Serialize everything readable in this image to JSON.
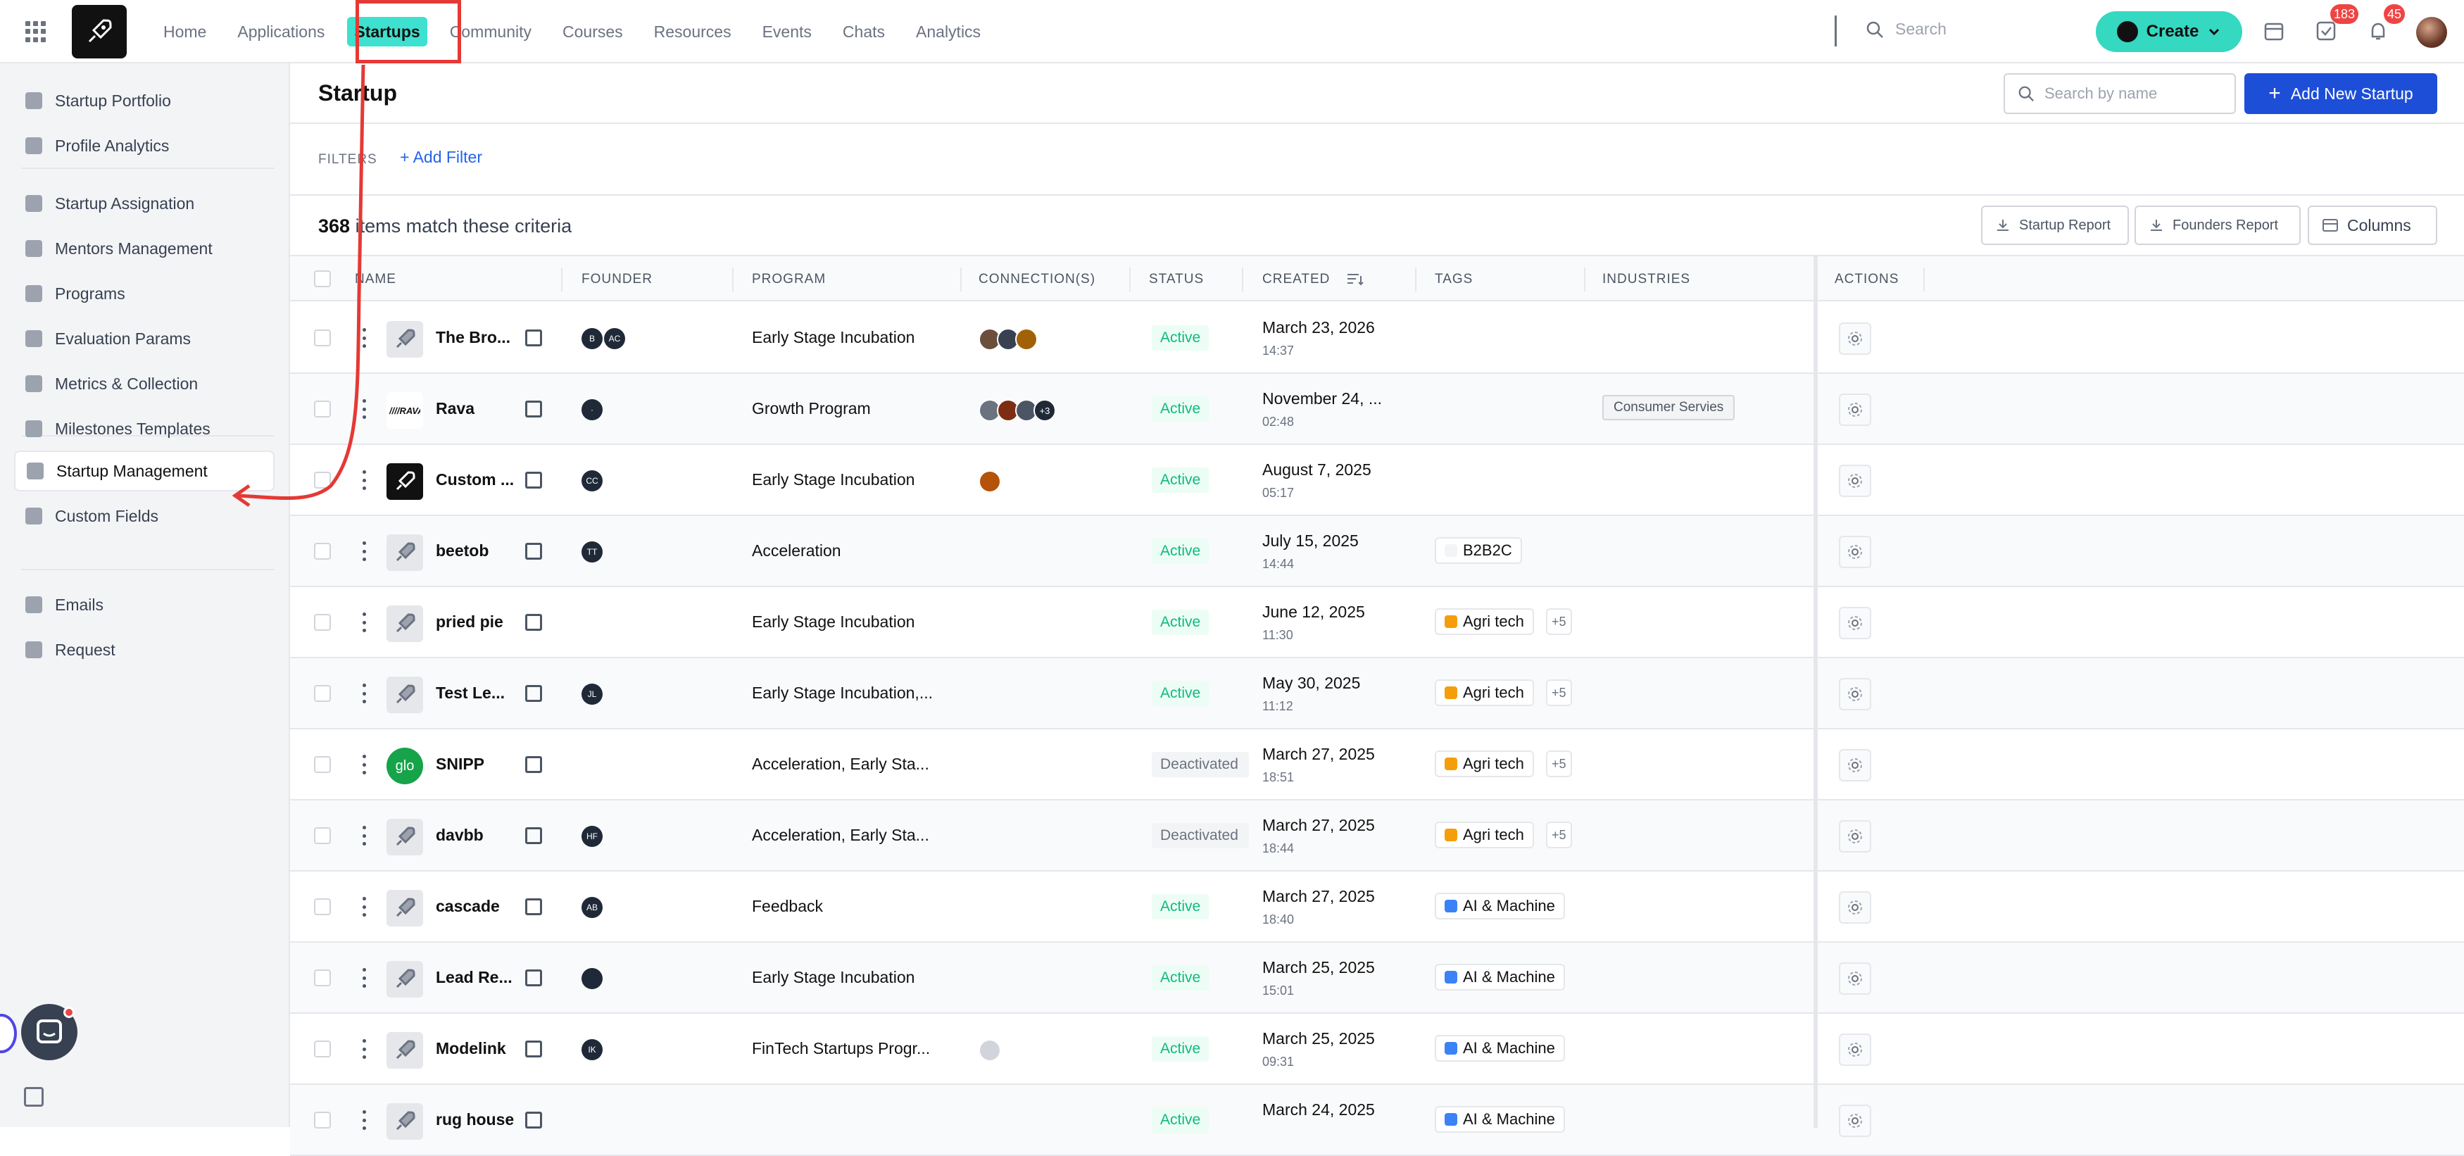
{
  "topbar": {
    "nav": [
      {
        "label": "Home",
        "active": false
      },
      {
        "label": "Applications",
        "active": false
      },
      {
        "label": "Startups",
        "active": true
      },
      {
        "label": "Community",
        "active": false
      },
      {
        "label": "Courses",
        "active": false
      },
      {
        "label": "Resources",
        "active": false
      },
      {
        "label": "Events",
        "active": false
      },
      {
        "label": "Chats",
        "active": false
      },
      {
        "label": "Analytics",
        "active": false
      }
    ],
    "search_placeholder": "Search",
    "create_label": "Create",
    "tasks_badge": "183",
    "notifications_badge": "45"
  },
  "sidebar": {
    "group1": [
      {
        "label": "Startup Portfolio",
        "icon": "briefcase-icon"
      },
      {
        "label": "Profile Analytics",
        "icon": "bar-chart-icon"
      }
    ],
    "group2": [
      {
        "label": "Startup Assignation",
        "icon": "assign-icon"
      },
      {
        "label": "Mentors Management",
        "icon": "users-icon"
      },
      {
        "label": "Programs",
        "icon": "rocket-icon"
      },
      {
        "label": "Evaluation Params",
        "icon": "scale-icon"
      },
      {
        "label": "Metrics & Collection",
        "icon": "pie-chart-icon"
      },
      {
        "label": "Milestones Templates",
        "icon": "trophy-icon"
      }
    ],
    "group3": [
      {
        "label": "Startup Management",
        "icon": "briefcase-icon",
        "active": true
      },
      {
        "label": "Custom Fields",
        "icon": "fields-icon"
      }
    ],
    "group4": [
      {
        "label": "Emails",
        "icon": "mail-icon"
      },
      {
        "label": "Request",
        "icon": "clipboard-icon"
      }
    ]
  },
  "main": {
    "title": "Startup",
    "search_placeholder": "Search by name",
    "add_button": "Add New Startup",
    "filters_label": "FILTERS",
    "add_filter": "Add Filter",
    "count": "368",
    "count_suffix": "items match these criteria",
    "startup_report": "Startup Report",
    "founders_report": "Founders Report",
    "columns_button": "Columns"
  },
  "table": {
    "headers": {
      "name": "NAME",
      "founder": "FOUNDER",
      "program": "PROGRAM",
      "connections": "CONNECTION(S)",
      "status": "STATUS",
      "created": "CREATED",
      "tags": "TAGS",
      "industries": "INDUSTRIES",
      "actions": "ACTIONS"
    },
    "rows": [
      {
        "name": "The Bro...",
        "logo": "rocket",
        "founders": [
          "B",
          "AC"
        ],
        "program": "Early Stage Incubation",
        "connections": [
          "#6b4f3a",
          "#374151",
          "#a16207"
        ],
        "conn_more": "",
        "status": "Active",
        "date": "March 23, 2026",
        "time": "14:37",
        "tag": "",
        "tag_color": "",
        "tag_more": "",
        "industry": ""
      },
      {
        "name": "Rava",
        "logo": "rava",
        "founders": [
          "·"
        ],
        "program": "Growth Program",
        "connections": [
          "#6b7280",
          "#7c2d12",
          "#4b5563"
        ],
        "conn_more": "+3",
        "status": "Active",
        "date": "November 24, ...",
        "time": "02:48",
        "tag": "",
        "tag_color": "",
        "tag_more": "",
        "industry": "Consumer Servies"
      },
      {
        "name": "Custom ...",
        "logo": "dark",
        "founders": [
          "CC"
        ],
        "program": "Early Stage Incubation",
        "connections": [
          "#b45309"
        ],
        "conn_more": "",
        "status": "Active",
        "date": "August 7, 2025",
        "time": "05:17",
        "tag": "",
        "tag_color": "",
        "tag_more": "",
        "industry": ""
      },
      {
        "name": "beetob",
        "logo": "rocket",
        "founders": [
          "TT"
        ],
        "program": "Acceleration",
        "connections": [],
        "conn_more": "",
        "status": "Active",
        "date": "July 15, 2025",
        "time": "14:44",
        "tag": "B2B2C",
        "tag_color": "#f3f4f6",
        "tag_more": "",
        "industry": ""
      },
      {
        "name": "pried pie",
        "logo": "rocket",
        "founders": [],
        "program": "Early Stage Incubation",
        "connections": [],
        "conn_more": "",
        "status": "Active",
        "date": "June 12, 2025",
        "time": "11:30",
        "tag": "Agri tech",
        "tag_color": "#f59e0b",
        "tag_more": "+5",
        "industry": ""
      },
      {
        "name": "Test Le...",
        "logo": "rocket",
        "founders": [
          "JL"
        ],
        "program": "Early Stage Incubation,...",
        "connections": [],
        "conn_more": "",
        "status": "Active",
        "date": "May 30, 2025",
        "time": "11:12",
        "tag": "Agri tech",
        "tag_color": "#f59e0b",
        "tag_more": "+5",
        "industry": ""
      },
      {
        "name": "SNIPP",
        "logo": "glo",
        "founders": [],
        "program": "Acceleration, Early Sta...",
        "connections": [],
        "conn_more": "",
        "status": "Deactivated",
        "date": "March 27, 2025",
        "time": "18:51",
        "tag": "Agri tech",
        "tag_color": "#f59e0b",
        "tag_more": "+5",
        "industry": ""
      },
      {
        "name": "davbb",
        "logo": "rocket",
        "founders": [
          "HF"
        ],
        "program": "Acceleration, Early Sta...",
        "connections": [],
        "conn_more": "",
        "status": "Deactivated",
        "date": "March 27, 2025",
        "time": "18:44",
        "tag": "Agri tech",
        "tag_color": "#f59e0b",
        "tag_more": "+5",
        "industry": ""
      },
      {
        "name": "cascade",
        "logo": "rocket",
        "founders": [
          "AB"
        ],
        "program": "Feedback",
        "connections": [],
        "conn_more": "",
        "status": "Active",
        "date": "March 27, 2025",
        "time": "18:40",
        "tag": "AI & Machine",
        "tag_color": "#3b82f6",
        "tag_more": "",
        "industry": ""
      },
      {
        "name": "Lead Re...",
        "logo": "rocket",
        "founders": [
          ""
        ],
        "program": "Early Stage Incubation",
        "connections": [],
        "conn_more": "",
        "status": "Active",
        "date": "March 25, 2025",
        "time": "15:01",
        "tag": "AI & Machine",
        "tag_color": "#3b82f6",
        "tag_more": "",
        "industry": ""
      },
      {
        "name": "Modelink",
        "logo": "rocket",
        "founders": [
          "IK"
        ],
        "program": "FinTech Startups Progr...",
        "connections": [
          "#d1d5db"
        ],
        "conn_more": "",
        "status": "Active",
        "date": "March 25, 2025",
        "time": "09:31",
        "tag": "AI & Machine",
        "tag_color": "#3b82f6",
        "tag_more": "",
        "industry": ""
      },
      {
        "name": "rug house",
        "logo": "rocket",
        "founders": [],
        "program": "",
        "connections": [],
        "conn_more": "",
        "status": "Active",
        "date": "March 24, 2025",
        "time": "",
        "tag": "AI & Machine",
        "tag_color": "#3b82f6",
        "tag_more": "",
        "industry": ""
      }
    ]
  },
  "colors": {
    "accent": "#35d8c1",
    "primary": "#1d4ed8",
    "highlight": "#e53935",
    "active_status": "#10b981"
  }
}
